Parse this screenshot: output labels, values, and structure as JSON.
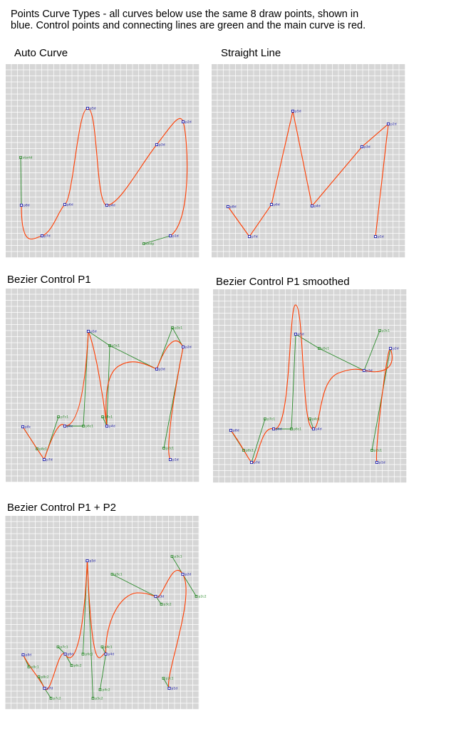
{
  "intro": {
    "line1": "Points Curve Types - all curves below use the same 8 draw points, shown in",
    "line2": "blue. Control points and connecting lines are green and the main curve is red."
  },
  "colors": {
    "background": "#d6d6d6",
    "grid": "#ffffff",
    "draw_point": "#1a1aa8",
    "draw_label": "#1a1aa8",
    "control_point": "#2a8a2a",
    "control_line": "#2a8a2a",
    "main_curve": "#ff3c00"
  },
  "panels": [
    {
      "title": "Auto Curve",
      "draw_points": [
        {
          "label": "p8d",
          "x": 22,
          "y": 198
        },
        {
          "label": "p7d",
          "x": 51,
          "y": 241
        },
        {
          "label": "p6d",
          "x": 83,
          "y": 197
        },
        {
          "label": "p5d",
          "x": 115,
          "y": 62
        },
        {
          "label": "p4d",
          "x": 142,
          "y": 198
        },
        {
          "label": "p3d",
          "x": 212,
          "y": 113
        },
        {
          "label": "p2d",
          "x": 249,
          "y": 81
        },
        {
          "label": "p1d",
          "x": 231,
          "y": 241
        }
      ],
      "control_points": [
        {
          "label": "startd",
          "x": 21,
          "y": 131
        },
        {
          "label": "endp",
          "x": 194,
          "y": 252
        }
      ],
      "control_lines": [
        [
          [
            21,
            131
          ],
          [
            22,
            198
          ]
        ],
        [
          [
            231,
            241
          ],
          [
            194,
            252
          ]
        ]
      ],
      "curves": [
        "M 22 198 C 22 260, 38 245, 51 241 C 66 236, 74 205, 83 197 C 95 188, 101 62, 115 62 C 130 62, 126 198, 142 198 C 160 198, 190 140, 212 113 C 230 90, 244 66, 249 81 C 256 102, 262 220, 231 241"
      ]
    },
    {
      "title": "Straight Line",
      "draw_points": [
        {
          "label": "p8d",
          "x": 23,
          "y": 200
        },
        {
          "label": "p7d",
          "x": 53,
          "y": 242
        },
        {
          "label": "p6d",
          "x": 84,
          "y": 197
        },
        {
          "label": "p5d",
          "x": 114,
          "y": 66
        },
        {
          "label": "p4d",
          "x": 141,
          "y": 199
        },
        {
          "label": "p3d",
          "x": 211,
          "y": 116
        },
        {
          "label": "p2d",
          "x": 248,
          "y": 84
        },
        {
          "label": "p1d",
          "x": 230,
          "y": 242
        }
      ],
      "control_points": [],
      "control_lines": [],
      "curves": [
        "M 23 200 L 53 242 L 84 197 L 114 66 L 141 199 L 211 116 L 248 84 L 230 242"
      ]
    },
    {
      "title": "Bezier Control P1",
      "draw_points": [
        {
          "label": "p8c",
          "x": 24,
          "y": 194
        },
        {
          "label": "p7d",
          "x": 54,
          "y": 240
        },
        {
          "label": "p6c",
          "x": 83,
          "y": 193
        },
        {
          "label": "p5d",
          "x": 116,
          "y": 60
        },
        {
          "label": "p4d",
          "x": 142,
          "y": 193
        },
        {
          "label": "p3d",
          "x": 212,
          "y": 113
        },
        {
          "label": "p2d",
          "x": 249,
          "y": 82
        },
        {
          "label": "p1d",
          "x": 231,
          "y": 240
        }
      ],
      "control_points": [
        {
          "label": "p8c1",
          "x": 44,
          "y": 225
        },
        {
          "label": "p7c1",
          "x": 74,
          "y": 180
        },
        {
          "label": "p6c1",
          "x": 109,
          "y": 193
        },
        {
          "label": "p5c1",
          "x": 146,
          "y": 80
        },
        {
          "label": "p4c1",
          "x": 136,
          "y": 180
        },
        {
          "label": "p3c1",
          "x": 234,
          "y": 55
        },
        {
          "label": "p2c1",
          "x": 222,
          "y": 224
        }
      ],
      "control_lines": [
        [
          [
            24,
            194
          ],
          [
            44,
            225
          ]
        ],
        [
          [
            54,
            240
          ],
          [
            74,
            180
          ]
        ],
        [
          [
            83,
            193
          ],
          [
            109,
            193
          ]
        ],
        [
          [
            116,
            60
          ],
          [
            146,
            80
          ]
        ],
        [
          [
            142,
            193
          ],
          [
            136,
            180
          ]
        ],
        [
          [
            212,
            113
          ],
          [
            234,
            55
          ]
        ],
        [
          [
            249,
            82
          ],
          [
            222,
            224
          ]
        ],
        [
          [
            146,
            80
          ],
          [
            142,
            193
          ]
        ],
        [
          [
            109,
            193
          ],
          [
            116,
            60
          ]
        ],
        [
          [
            146,
            80
          ],
          [
            212,
            113
          ]
        ],
        [
          [
            234,
            55
          ],
          [
            249,
            82
          ]
        ]
      ],
      "curves": [
        "M 24 194 Q 44 225, 54 240 Q 74 180, 83 193 Q 109 193, 116 60 Q 128 90, 142 193 Q 136 120, 160 108 C 180 96, 200 108, 212 113 Q 234 55, 249 82 Q 222 224, 231 240"
      ]
    },
    {
      "title": "Bezier Control P1 smoothed",
      "draw_points": [
        {
          "label": "p8d",
          "x": 25,
          "y": 198
        },
        {
          "label": "p7d",
          "x": 54,
          "y": 243
        },
        {
          "label": "p6d",
          "x": 85,
          "y": 196
        },
        {
          "label": "p5d",
          "x": 116,
          "y": 63
        },
        {
          "label": "p4d",
          "x": 141,
          "y": 196
        },
        {
          "label": "p3d",
          "x": 212,
          "y": 114
        },
        {
          "label": "p2d",
          "x": 249,
          "y": 83
        },
        {
          "label": "p1d",
          "x": 230,
          "y": 243
        }
      ],
      "control_points": [
        {
          "label": "p8c1",
          "x": 43,
          "y": 226
        },
        {
          "label": "p7c1",
          "x": 73,
          "y": 182
        },
        {
          "label": "p6c1",
          "x": 110,
          "y": 196
        },
        {
          "label": "p5c1",
          "x": 149,
          "y": 83
        },
        {
          "label": "p4c1",
          "x": 136,
          "y": 182
        },
        {
          "label": "p3c1",
          "x": 234,
          "y": 58
        },
        {
          "label": "p2c1",
          "x": 223,
          "y": 226
        }
      ],
      "control_lines": [
        [
          [
            25,
            198
          ],
          [
            43,
            226
          ]
        ],
        [
          [
            54,
            243
          ],
          [
            73,
            182
          ]
        ],
        [
          [
            85,
            196
          ],
          [
            110,
            196
          ]
        ],
        [
          [
            116,
            63
          ],
          [
            149,
            83
          ]
        ],
        [
          [
            141,
            196
          ],
          [
            136,
            182
          ]
        ],
        [
          [
            212,
            114
          ],
          [
            234,
            58
          ]
        ],
        [
          [
            249,
            83
          ],
          [
            223,
            226
          ]
        ],
        [
          [
            149,
            83
          ],
          [
            212,
            114
          ]
        ],
        [
          [
            110,
            196
          ],
          [
            116,
            63
          ]
        ]
      ],
      "curves": [
        "M 25 198 C 40 218, 48 236, 54 243 C 62 250, 66 190, 85 196 C 110 202, 106 20, 116 22 C 128 24, 124 200, 141 196 C 152 193, 148 130, 175 118 C 195 110, 205 112, 212 114 C 240 120, 258 110, 249 83 C 245 75, 226 230, 230 243"
      ]
    },
    {
      "title": "Bezier Control P1 + P2",
      "draw_points": [
        {
          "label": "p8d",
          "x": 25,
          "y": 195
        },
        {
          "label": "p7d",
          "x": 55,
          "y": 242
        },
        {
          "label": "p6d",
          "x": 84,
          "y": 194
        },
        {
          "label": "p5d",
          "x": 115,
          "y": 63
        },
        {
          "label": "p4d",
          "x": 141,
          "y": 194
        },
        {
          "label": "p3d",
          "x": 211,
          "y": 113
        },
        {
          "label": "p2d",
          "x": 249,
          "y": 82
        },
        {
          "label": "p1d",
          "x": 230,
          "y": 242
        }
      ],
      "control_points": [
        {
          "label": "p8c1",
          "x": 33,
          "y": 212
        },
        {
          "label": "p8c2",
          "x": 47,
          "y": 226
        },
        {
          "label": "p7c1",
          "x": 74,
          "y": 184
        },
        {
          "label": "p7c2",
          "x": 64,
          "y": 256
        },
        {
          "label": "p6c1",
          "x": 109,
          "y": 194
        },
        {
          "label": "p6c2",
          "x": 93,
          "y": 210
        },
        {
          "label": "p5c1",
          "x": 150,
          "y": 82
        },
        {
          "label": "p5c2",
          "x": 123,
          "y": 256
        },
        {
          "label": "p4c1",
          "x": 136,
          "y": 184
        },
        {
          "label": "p4c2",
          "x": 133,
          "y": 244
        },
        {
          "label": "p3c1",
          "x": 234,
          "y": 57
        },
        {
          "label": "p3c2",
          "x": 219,
          "y": 124
        },
        {
          "label": "p2c1",
          "x": 222,
          "y": 228
        },
        {
          "label": "p2c2",
          "x": 268,
          "y": 113
        }
      ],
      "control_lines": [
        [
          [
            25,
            195
          ],
          [
            33,
            212
          ]
        ],
        [
          [
            47,
            226
          ],
          [
            55,
            242
          ]
        ],
        [
          [
            55,
            242
          ],
          [
            64,
            256
          ]
        ],
        [
          [
            74,
            184
          ],
          [
            84,
            194
          ]
        ],
        [
          [
            84,
            194
          ],
          [
            93,
            210
          ]
        ],
        [
          [
            109,
            194
          ],
          [
            115,
            63
          ]
        ],
        [
          [
            115,
            63
          ],
          [
            123,
            256
          ]
        ],
        [
          [
            150,
            82
          ],
          [
            211,
            113
          ]
        ],
        [
          [
            136,
            184
          ],
          [
            141,
            194
          ]
        ],
        [
          [
            141,
            194
          ],
          [
            133,
            244
          ]
        ],
        [
          [
            211,
            113
          ],
          [
            219,
            124
          ]
        ],
        [
          [
            234,
            57
          ],
          [
            249,
            82
          ]
        ],
        [
          [
            249,
            82
          ],
          [
            268,
            113
          ]
        ],
        [
          [
            222,
            228
          ],
          [
            230,
            242
          ]
        ]
      ],
      "curves": [
        "M 25 195 C 33 212, 47 226, 55 242 C 64 256, 74 184, 84 194 C 93 210, 109 194, 115 63 C 123 256, 136 184, 141 194 C 140 150, 160 110, 185 108 C 200 108, 205 112, 211 113 C 219 124, 234 57, 249 82 C 268 113, 222 228, 230 242"
      ]
    }
  ]
}
